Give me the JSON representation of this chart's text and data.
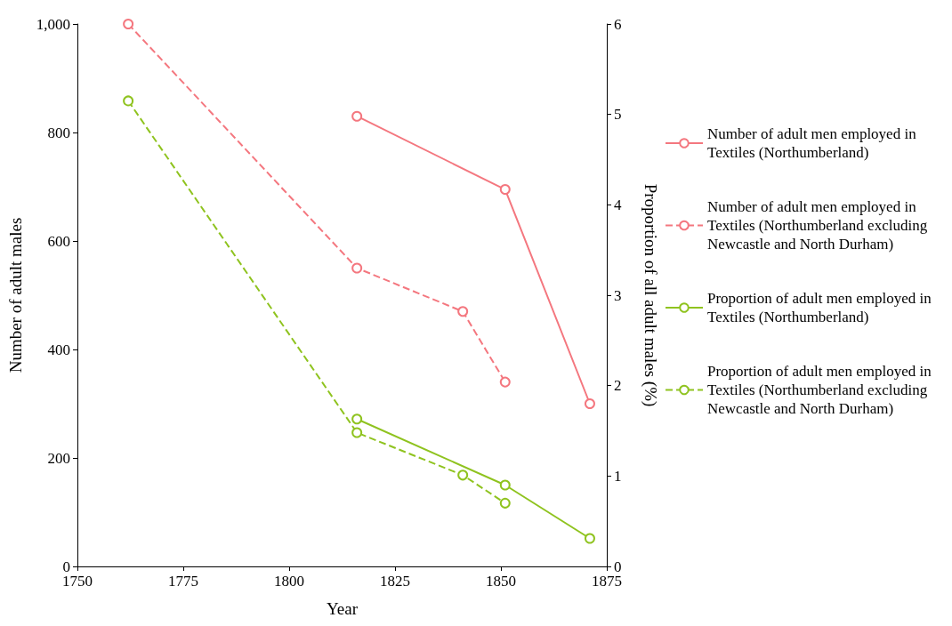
{
  "chart_data": {
    "type": "line",
    "xlabel": "Year",
    "ylabel": "Number of adult males",
    "y2label": "Proportion of all adult males (%)",
    "xlim": [
      1750,
      1875
    ],
    "xticks": [
      1750,
      1775,
      1800,
      1825,
      1850,
      1875
    ],
    "ylim": [
      0,
      1000
    ],
    "yticks": [
      0,
      200,
      400,
      600,
      800,
      {
        "value": 1000,
        "label": "1,000"
      }
    ],
    "y2lim": [
      0,
      6
    ],
    "y2ticks": [
      0,
      1,
      2,
      3,
      4,
      5,
      6
    ],
    "grid": false,
    "legend": "right",
    "marker": "circle",
    "series": [
      {
        "name": "Number of adult men employed in Textiles (Northumberland)",
        "color": "#f4777f",
        "line_style": "solid",
        "x": [
          1816,
          1851,
          1871
        ],
        "values": [
          830,
          695,
          300
        ]
      },
      {
        "name": "Number of adult men employed in Textiles (Northumberland excluding Newcastle and North Durham)",
        "color": "#f4777f",
        "line_style": "dashed",
        "x": [
          1762,
          1816,
          1841,
          1851
        ],
        "values": [
          1000,
          550,
          470,
          340
        ]
      },
      {
        "name": "Proportion of adult men employed in Textiles (Northumberland)",
        "color": "#8fc31f",
        "line_style": "solid",
        "axis": "y2",
        "x": [
          1816,
          1851,
          1871
        ],
        "values": [
          1.63,
          0.9,
          0.31
        ]
      },
      {
        "name": "Proportion of adult men employed in Textiles (Northumberland excluding Newcastle and North Durham)",
        "color": "#8fc31f",
        "line_style": "dashed",
        "axis": "y2",
        "x": [
          1762,
          1816,
          1841,
          1851
        ],
        "values": [
          5.15,
          1.48,
          1.01,
          0.7
        ]
      }
    ]
  }
}
